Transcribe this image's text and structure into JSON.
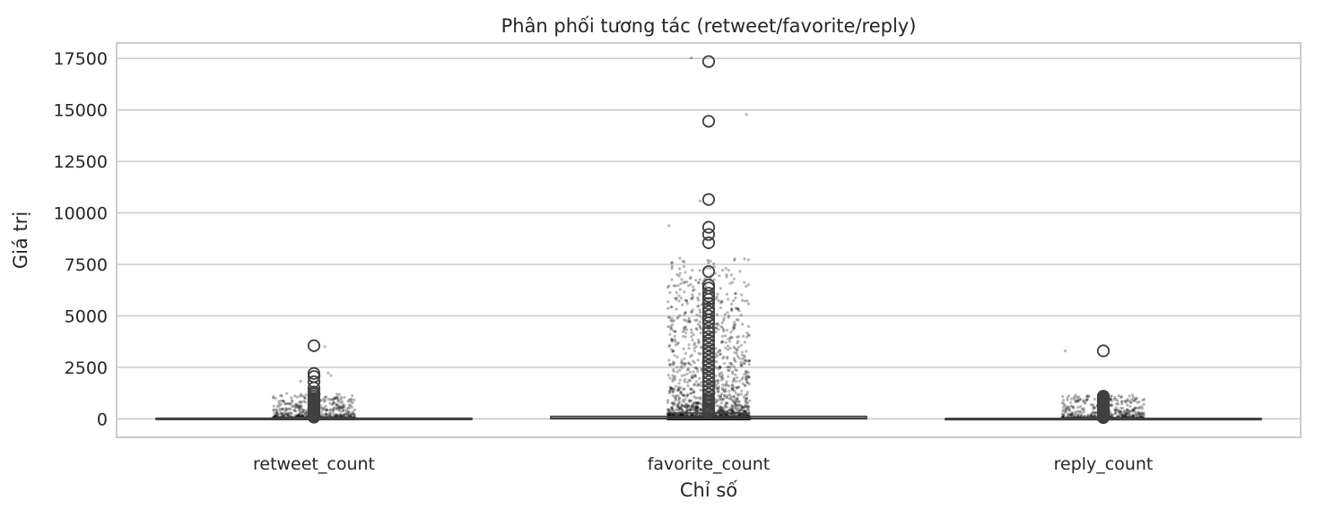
{
  "chart_data": {
    "type": "box",
    "title": "Phân phối tương tác (retweet/favorite/reply)",
    "xlabel": "Chỉ số",
    "ylabel": "Giá trị",
    "categories": [
      "retweet_count",
      "favorite_count",
      "reply_count"
    ],
    "ylim": [
      -900,
      18250
    ],
    "yticks": [
      0,
      2500,
      5000,
      7500,
      10000,
      12500,
      15000,
      17500
    ],
    "ytick_labels": [
      "0",
      "2500",
      "5000",
      "7500",
      "10000",
      "12500",
      "15000",
      "17500"
    ],
    "grid": "horizontal",
    "boxes": [
      {
        "category": "retweet_count",
        "q1": 0,
        "median": 5,
        "q3": 30,
        "whisker_low": 0,
        "whisker_high": 70,
        "outliers": [
          3550,
          2200,
          2050,
          1800,
          1500,
          1300,
          1200,
          1100,
          1000,
          950,
          900,
          850,
          800,
          750,
          700,
          650,
          600,
          550,
          500,
          450,
          400,
          350,
          300,
          250,
          200,
          150,
          120,
          100,
          90,
          80
        ],
        "strip_max": 3550
      },
      {
        "category": "favorite_count",
        "q1": 0,
        "median": 30,
        "q3": 120,
        "whisker_low": 0,
        "whisker_high": 280,
        "outliers": [
          17350,
          14450,
          10650,
          9300,
          8950,
          8550,
          7150,
          6500,
          6350,
          6100,
          5950,
          5800,
          5600,
          5350,
          5200,
          5000,
          4800,
          4650,
          4400,
          4200,
          4000,
          3800,
          3600,
          3400,
          3200,
          3000,
          2800,
          2600,
          2400,
          2200,
          2000,
          1800,
          1600,
          1400,
          1200,
          1000,
          900,
          800,
          700,
          600,
          500,
          450,
          400,
          350,
          300
        ],
        "strip_max": 17350
      },
      {
        "category": "reply_count",
        "q1": 0,
        "median": 3,
        "q3": 20,
        "whisker_low": 0,
        "whisker_high": 50,
        "outliers": [
          3300,
          1100,
          1050,
          1000,
          950,
          900,
          850,
          800,
          750,
          700,
          650,
          600,
          550,
          500,
          450,
          400,
          350,
          300,
          250,
          200,
          150,
          120,
          100,
          80,
          60
        ],
        "strip_max": 3300
      }
    ],
    "colors": {
      "box_line": "#404040",
      "grid": "#cccccc",
      "strip": "#000000",
      "frame": "#cccccc"
    }
  }
}
